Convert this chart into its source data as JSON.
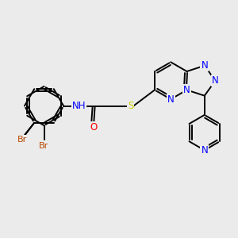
{
  "bg_color": "#ebebeb",
  "bond_color": "#000000",
  "atom_colors": {
    "N": "#0000ff",
    "O": "#ff0000",
    "S": "#cccc00",
    "Br": "#b84800",
    "C": "#000000"
  },
  "font_size": 8.5,
  "bond_width": 1.4,
  "figsize": [
    3.0,
    3.0
  ],
  "dpi": 100
}
